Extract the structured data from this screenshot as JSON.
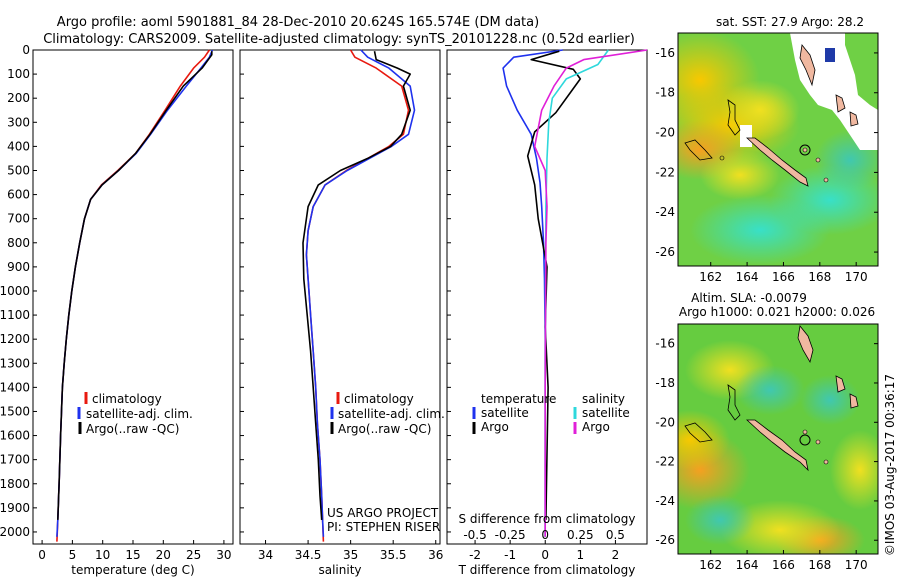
{
  "header": {
    "title_line1": "Argo profile: aoml 5901881_84 28-Dec-2010 20.624S 165.574E (DM data)",
    "title_line2": "Climatology: CARS2009. Satellite-adjusted climatology: synTS_20101228.nc (0.52d earlier)"
  },
  "credit": "©IMOS 03-Aug-2017 00:36:17",
  "project_note": {
    "line1": "US ARGO PROJECT",
    "line2": "PI: STEPHEN RISER"
  },
  "legend": {
    "climatology": "climatology",
    "satellite": "satellite-adj. clim.",
    "argo": "Argo(..raw -QC)",
    "temperature_head": "temperature",
    "salinity_head": "salinity",
    "satellite_short": "satellite",
    "argo_short": "Argo"
  },
  "colors": {
    "climatology": "#e8190f",
    "satellite": "#1f32ee",
    "argo": "#000000",
    "t_satellite": "#1f32ee",
    "t_argo": "#000000",
    "s_satellite": "#2ed8dc",
    "s_argo": "#e020d8"
  },
  "maps": {
    "sst": {
      "title": "sat. SST: 27.9 Argo: 28.2"
    },
    "sla": {
      "title1": "Altim. SLA: -0.0079",
      "title2": "Argo h1000: 0.021 h2000: 0.026"
    },
    "lon_ticks": [
      "162",
      "164",
      "166",
      "168",
      "170"
    ],
    "lat_ticks": [
      "-16",
      "-18",
      "-20",
      "-22",
      "-24",
      "-26"
    ]
  },
  "chart_data": [
    {
      "type": "line",
      "xlabel": "temperature (deg C)",
      "ylabel": "",
      "xlim": [
        -1.5,
        31.5
      ],
      "ylim": [
        2050,
        0
      ],
      "x_ticks": [
        "0",
        "5",
        "10",
        "15",
        "20",
        "25",
        "30"
      ],
      "y_ticks": [
        "0",
        "100",
        "200",
        "300",
        "400",
        "500",
        "600",
        "700",
        "800",
        "900",
        "1000",
        "1100",
        "1200",
        "1300",
        "1400",
        "1500",
        "1600",
        "1700",
        "1800",
        "1900",
        "2000"
      ],
      "series": [
        {
          "name": "climatology",
          "x": [
            27.6,
            26.8,
            25.0,
            22.8,
            20.3,
            17.7,
            15.4,
            12.5,
            9.8,
            8.0,
            7.0,
            6.2,
            5.5,
            4.9,
            4.4,
            4.0,
            3.65,
            3.35,
            3.05,
            2.8,
            2.6,
            2.45
          ],
          "y": [
            0,
            30,
            75,
            150,
            250,
            350,
            430,
            500,
            560,
            620,
            700,
            800,
            900,
            1000,
            1100,
            1200,
            1300,
            1400,
            1600,
            1800,
            1950,
            2040
          ]
        },
        {
          "name": "satellite-adj. clim.",
          "x": [
            28.1,
            27.6,
            26.2,
            23.8,
            20.7,
            17.9,
            15.5,
            12.6,
            9.9,
            8.0,
            7.0,
            6.2,
            5.5,
            4.9,
            4.4,
            4.0,
            3.65,
            3.35,
            3.05,
            2.8,
            2.6,
            2.45
          ],
          "y": [
            0,
            30,
            75,
            150,
            250,
            350,
            430,
            500,
            560,
            620,
            700,
            800,
            900,
            1000,
            1100,
            1200,
            1300,
            1400,
            1600,
            1800,
            1950,
            2020
          ]
        },
        {
          "name": "Argo(..raw -QC)",
          "x": [
            28.0,
            28.0,
            26.4,
            23.3,
            20.5,
            17.8,
            15.4,
            12.6,
            9.9,
            8.0,
            7.0,
            6.2,
            5.5,
            4.9,
            4.4,
            4.0,
            3.65,
            3.35,
            3.05,
            2.8,
            2.6
          ],
          "y": [
            5,
            20,
            75,
            150,
            250,
            350,
            430,
            500,
            560,
            620,
            700,
            800,
            900,
            1000,
            1100,
            1200,
            1300,
            1400,
            1600,
            1800,
            1950
          ]
        }
      ]
    },
    {
      "type": "line",
      "xlabel": "salinity",
      "ylabel": "",
      "xlim": [
        33.7,
        36.05
      ],
      "ylim": [
        2050,
        0
      ],
      "x_ticks": [
        "34",
        "34.5",
        "35",
        "35.5",
        "36"
      ],
      "series": [
        {
          "name": "climatology",
          "x": [
            35.0,
            35.05,
            35.3,
            35.6,
            35.68,
            35.62,
            35.45,
            35.2,
            34.95,
            34.7,
            34.56,
            34.5,
            34.48,
            34.5,
            34.53,
            34.56,
            34.59,
            34.61,
            34.64,
            34.66,
            34.67,
            34.68
          ],
          "y": [
            0,
            30,
            75,
            150,
            250,
            350,
            400,
            450,
            500,
            560,
            650,
            750,
            850,
            950,
            1100,
            1250,
            1400,
            1550,
            1700,
            1850,
            1950,
            2040
          ]
        },
        {
          "name": "satellite-adj. clim.",
          "x": [
            35.12,
            35.2,
            35.45,
            35.7,
            35.75,
            35.68,
            35.48,
            35.22,
            34.96,
            34.7,
            34.56,
            34.5,
            34.48,
            34.5,
            34.53,
            34.56,
            34.59,
            34.61,
            34.64,
            34.66,
            34.67,
            34.68
          ],
          "y": [
            0,
            30,
            75,
            150,
            250,
            350,
            400,
            450,
            500,
            560,
            650,
            750,
            850,
            950,
            1100,
            1250,
            1400,
            1550,
            1700,
            1850,
            1950,
            2020
          ]
        },
        {
          "name": "Argo(..raw -QC)",
          "x": [
            35.28,
            35.3,
            35.55,
            35.7,
            35.62,
            35.7,
            35.6,
            35.47,
            35.2,
            34.88,
            34.62,
            34.5,
            34.44,
            34.45,
            34.49,
            34.53,
            34.56,
            34.59,
            34.62,
            34.64,
            34.66
          ],
          "y": [
            5,
            40,
            75,
            100,
            150,
            250,
            350,
            400,
            450,
            500,
            560,
            650,
            800,
            950,
            1100,
            1250,
            1400,
            1550,
            1700,
            1850,
            1950
          ]
        }
      ]
    },
    {
      "type": "line",
      "title": "S difference from climatology",
      "xlabel": "T difference from climatology",
      "ylabel": "",
      "xlim": [
        -2.8,
        2.9
      ],
      "ylim": [
        2050,
        0
      ],
      "x_ticks": [
        "-2",
        "-1",
        "0",
        "1",
        "2"
      ],
      "top_ticks": [
        "-0.5",
        "-0.25",
        "0",
        "0.25",
        "0.5"
      ],
      "top_tick_values": [
        -0.5,
        -0.25,
        0,
        0.25,
        0.5
      ],
      "series": [
        {
          "name": "temperature satellite",
          "x": [
            0.5,
            -0.9,
            -1.2,
            -1.1,
            -0.8,
            -0.4,
            -0.25,
            -0.15,
            -0.1,
            -0.05,
            -0.02,
            0,
            0,
            0
          ],
          "y": [
            0,
            30,
            75,
            150,
            250,
            350,
            450,
            550,
            650,
            800,
            950,
            1200,
            1600,
            2020
          ]
        },
        {
          "name": "temperature Argo",
          "x": [
            0.4,
            -0.4,
            0.8,
            1.0,
            0.7,
            0.3,
            -0.3,
            -0.5,
            -0.3,
            -0.2,
            0.05,
            0,
            0.08,
            0.02
          ],
          "y": [
            5,
            40,
            80,
            120,
            180,
            260,
            340,
            440,
            560,
            700,
            900,
            1150,
            1400,
            1950
          ]
        },
        {
          "name": "salinity satellite",
          "x": [
            1.8,
            1.5,
            0.6,
            0.2,
            0.1,
            0.05,
            0.02,
            0.01,
            0,
            0
          ],
          "y": [
            0,
            60,
            120,
            200,
            300,
            450,
            650,
            900,
            1300,
            2020
          ]
        },
        {
          "name": "salinity Argo",
          "x": [
            2.9,
            1.1,
            0.6,
            0.25,
            -0.1,
            -0.3,
            0.0,
            0.05,
            0.02,
            0.01,
            0,
            0
          ],
          "y": [
            0,
            40,
            75,
            150,
            250,
            400,
            500,
            650,
            800,
            1000,
            1400,
            2020
          ]
        }
      ]
    }
  ]
}
